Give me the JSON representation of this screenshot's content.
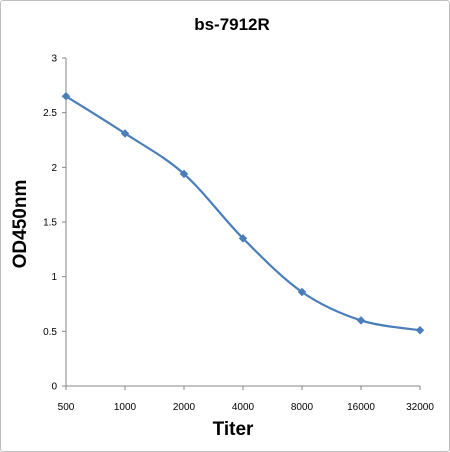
{
  "chart_data": {
    "type": "line",
    "title": "bs-7912R",
    "xlabel": "Titer",
    "ylabel": "OD450nm",
    "categories": [
      "500",
      "1000",
      "2000",
      "4000",
      "8000",
      "16000",
      "32000"
    ],
    "series": [
      {
        "values": [
          2.65,
          2.31,
          1.94,
          1.35,
          0.86,
          0.6,
          0.51
        ]
      }
    ],
    "ylim": [
      0,
      3
    ],
    "yticks": [
      0,
      0.5,
      1,
      1.5,
      2,
      2.5,
      3
    ],
    "ytick_labels": [
      "0",
      "0.5",
      "1",
      "1.5",
      "2",
      "2.5",
      "3"
    ],
    "grid": false,
    "legend": "none",
    "line_style": "smoothed",
    "marker": "diamond",
    "series_color": "#4a7ebb"
  }
}
